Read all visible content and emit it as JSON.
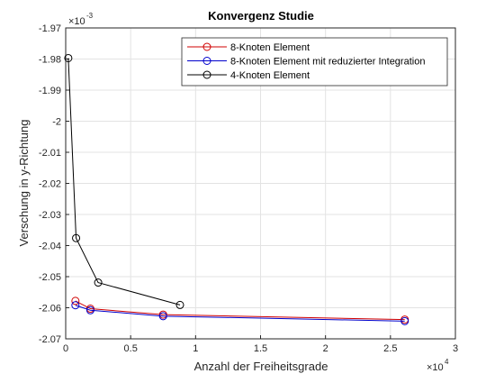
{
  "chart_data": {
    "type": "line",
    "title": "Konvergenz Studie",
    "xlabel": "Anzahl der Freiheitsgrade",
    "ylabel": "Verschung in y-Richtung",
    "x_multiplier_label": "×10",
    "x_multiplier_exp": "4",
    "y_multiplier_label": "×10",
    "y_multiplier_exp": "-3",
    "xlim": [
      0,
      3
    ],
    "ylim": [
      -2.07,
      -1.97
    ],
    "x_ticks": [
      "0",
      "0.5",
      "1",
      "1.5",
      "2",
      "2.5",
      "3"
    ],
    "y_ticks": [
      "-1.97",
      "-1.98",
      "-1.99",
      "-2",
      "-2.01",
      "-2.02",
      "-2.03",
      "-2.04",
      "-2.05",
      "-2.06",
      "-2.07"
    ],
    "grid": true,
    "legend_position": "top-right",
    "series": [
      {
        "name": "8-Knoten Element",
        "color": "#d00000",
        "marker": "circle",
        "x": [
          0.075,
          0.19,
          0.75,
          2.61
        ],
        "y": [
          -2.0578,
          -2.0603,
          -2.0622,
          -2.0638
        ]
      },
      {
        "name": "8-Knoten Element mit reduzierter Integration",
        "color": "#0000cc",
        "marker": "circle",
        "x": [
          0.075,
          0.19,
          0.75,
          2.61
        ],
        "y": [
          -2.0592,
          -2.0608,
          -2.0627,
          -2.0643
        ]
      },
      {
        "name": "4-Knoten Element",
        "color": "#000000",
        "marker": "circle",
        "x": [
          0.02,
          0.08,
          0.25,
          0.88
        ],
        "y": [
          -1.9797,
          -2.0376,
          -2.0519,
          -2.0591
        ]
      }
    ]
  }
}
